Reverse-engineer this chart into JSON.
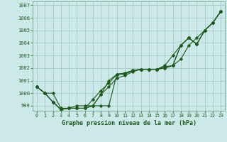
{
  "title": "Graphe pression niveau de la mer (hPa)",
  "background_color": "#cce8e8",
  "grid_color": "#aacccc",
  "line_color": "#1a5c1a",
  "text_color": "#1a5c1a",
  "xlim": [
    -0.5,
    23.5
  ],
  "ylim": [
    998.6,
    1007.3
  ],
  "yticks": [
    999,
    1000,
    1001,
    1002,
    1003,
    1004,
    1005,
    1006,
    1007
  ],
  "xticks": [
    0,
    1,
    2,
    3,
    4,
    5,
    6,
    7,
    8,
    9,
    10,
    11,
    12,
    13,
    14,
    15,
    16,
    17,
    18,
    19,
    20,
    21,
    22,
    23
  ],
  "series": [
    [
      1000.5,
      1000.0,
      1000.0,
      998.8,
      998.8,
      999.0,
      999.0,
      999.0,
      999.0,
      999.0,
      1001.5,
      1001.5,
      1001.8,
      1001.9,
      1001.9,
      1001.9,
      1002.1,
      1002.2,
      1003.8,
      1004.4,
      1003.9,
      1005.0,
      1005.6,
      1006.5
    ],
    [
      1000.5,
      1000.0,
      999.3,
      998.7,
      998.8,
      998.8,
      998.8,
      999.5,
      1000.2,
      1000.8,
      1001.5,
      1001.6,
      1001.8,
      1001.9,
      1001.9,
      1001.9,
      1002.0,
      1002.2,
      1002.7,
      1003.8,
      1004.4,
      1005.0,
      1005.6,
      1006.5
    ],
    [
      1000.5,
      1000.0,
      999.3,
      998.7,
      998.8,
      998.8,
      998.8,
      999.0,
      999.9,
      1000.5,
      1001.2,
      1001.4,
      1001.7,
      1001.9,
      1001.9,
      1001.9,
      1002.0,
      1002.2,
      1003.8,
      1004.4,
      1003.9,
      1005.0,
      1005.6,
      1006.5
    ],
    [
      1000.5,
      1000.0,
      999.3,
      998.7,
      998.8,
      998.8,
      998.8,
      999.0,
      999.9,
      1001.0,
      1001.5,
      1001.6,
      1001.8,
      1001.9,
      1001.9,
      1001.9,
      1002.2,
      1003.0,
      1003.8,
      1004.4,
      1003.9,
      1005.0,
      1005.6,
      1006.5
    ]
  ]
}
